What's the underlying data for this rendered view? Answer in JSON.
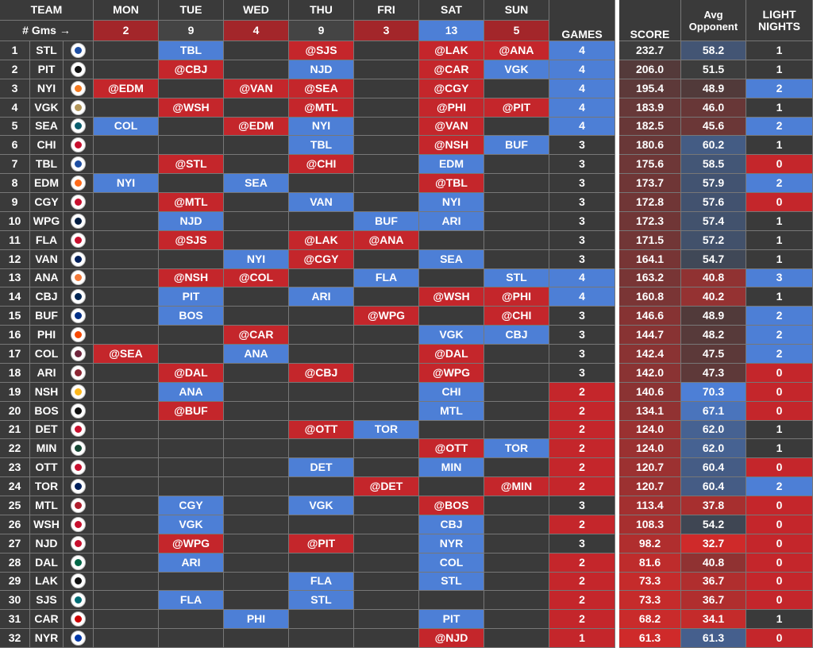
{
  "header": {
    "team": "TEAM",
    "days": [
      "MON",
      "TUE",
      "WED",
      "THU",
      "FRI",
      "SAT",
      "SUN"
    ],
    "gms_label": "# Gms →",
    "day_counts": [
      "2",
      "9",
      "4",
      "9",
      "3",
      "13",
      "5"
    ],
    "games": "GAMES",
    "score": "SCORE",
    "avg_line1": "Avg",
    "avg_line2": "Opponent",
    "light": "LIGHT NIGHTS"
  },
  "table": {
    "rows": [
      {
        "rank": "1",
        "team": "STL",
        "games": [
          null,
          "TBL",
          null,
          "@SJS",
          null,
          "@LAK",
          "@ANA"
        ],
        "count": "4",
        "score": "232.7",
        "avg": "58.2",
        "light": "1"
      },
      {
        "rank": "2",
        "team": "PIT",
        "games": [
          null,
          "@CBJ",
          null,
          "NJD",
          null,
          "@CAR",
          "VGK"
        ],
        "count": "4",
        "score": "206.0",
        "avg": "51.5",
        "light": "1"
      },
      {
        "rank": "3",
        "team": "NYI",
        "games": [
          "@EDM",
          null,
          "@VAN",
          "@SEA",
          null,
          "@CGY",
          null
        ],
        "count": "4",
        "score": "195.4",
        "avg": "48.9",
        "light": "2"
      },
      {
        "rank": "4",
        "team": "VGK",
        "games": [
          null,
          "@WSH",
          null,
          "@MTL",
          null,
          "@PHI",
          "@PIT"
        ],
        "count": "4",
        "score": "183.9",
        "avg": "46.0",
        "light": "1"
      },
      {
        "rank": "5",
        "team": "SEA",
        "games": [
          "COL",
          null,
          "@EDM",
          "NYI",
          null,
          "@VAN",
          null
        ],
        "count": "4",
        "score": "182.5",
        "avg": "45.6",
        "light": "2"
      },
      {
        "rank": "6",
        "team": "CHI",
        "games": [
          null,
          null,
          null,
          "TBL",
          null,
          "@NSH",
          "BUF"
        ],
        "count": "3",
        "score": "180.6",
        "avg": "60.2",
        "light": "1"
      },
      {
        "rank": "7",
        "team": "TBL",
        "games": [
          null,
          "@STL",
          null,
          "@CHI",
          null,
          "EDM",
          null
        ],
        "count": "3",
        "score": "175.6",
        "avg": "58.5",
        "light": "0"
      },
      {
        "rank": "8",
        "team": "EDM",
        "games": [
          "NYI",
          null,
          "SEA",
          null,
          null,
          "@TBL",
          null
        ],
        "count": "3",
        "score": "173.7",
        "avg": "57.9",
        "light": "2"
      },
      {
        "rank": "9",
        "team": "CGY",
        "games": [
          null,
          "@MTL",
          null,
          "VAN",
          null,
          "NYI",
          null
        ],
        "count": "3",
        "score": "172.8",
        "avg": "57.6",
        "light": "0"
      },
      {
        "rank": "10",
        "team": "WPG",
        "games": [
          null,
          "NJD",
          null,
          null,
          "BUF",
          "ARI",
          null
        ],
        "count": "3",
        "score": "172.3",
        "avg": "57.4",
        "light": "1"
      },
      {
        "rank": "11",
        "team": "FLA",
        "games": [
          null,
          "@SJS",
          null,
          "@LAK",
          "@ANA",
          null,
          null
        ],
        "count": "3",
        "score": "171.5",
        "avg": "57.2",
        "light": "1"
      },
      {
        "rank": "12",
        "team": "VAN",
        "games": [
          null,
          null,
          "NYI",
          "@CGY",
          null,
          "SEA",
          null
        ],
        "count": "3",
        "score": "164.1",
        "avg": "54.7",
        "light": "1"
      },
      {
        "rank": "13",
        "team": "ANA",
        "games": [
          null,
          "@NSH",
          "@COL",
          null,
          "FLA",
          null,
          "STL"
        ],
        "count": "4",
        "score": "163.2",
        "avg": "40.8",
        "light": "3"
      },
      {
        "rank": "14",
        "team": "CBJ",
        "games": [
          null,
          "PIT",
          null,
          "ARI",
          null,
          "@WSH",
          "@PHI"
        ],
        "count": "4",
        "score": "160.8",
        "avg": "40.2",
        "light": "1"
      },
      {
        "rank": "15",
        "team": "BUF",
        "games": [
          null,
          "BOS",
          null,
          null,
          "@WPG",
          null,
          "@CHI"
        ],
        "count": "3",
        "score": "146.6",
        "avg": "48.9",
        "light": "2"
      },
      {
        "rank": "16",
        "team": "PHI",
        "games": [
          null,
          null,
          "@CAR",
          null,
          null,
          "VGK",
          "CBJ"
        ],
        "count": "3",
        "score": "144.7",
        "avg": "48.2",
        "light": "2"
      },
      {
        "rank": "17",
        "team": "COL",
        "games": [
          "@SEA",
          null,
          "ANA",
          null,
          null,
          "@DAL",
          null
        ],
        "count": "3",
        "score": "142.4",
        "avg": "47.5",
        "light": "2"
      },
      {
        "rank": "18",
        "team": "ARI",
        "games": [
          null,
          "@DAL",
          null,
          "@CBJ",
          null,
          "@WPG",
          null
        ],
        "count": "3",
        "score": "142.0",
        "avg": "47.3",
        "light": "0"
      },
      {
        "rank": "19",
        "team": "NSH",
        "games": [
          null,
          "ANA",
          null,
          null,
          null,
          "CHI",
          null
        ],
        "count": "2",
        "score": "140.6",
        "avg": "70.3",
        "light": "0"
      },
      {
        "rank": "20",
        "team": "BOS",
        "games": [
          null,
          "@BUF",
          null,
          null,
          null,
          "MTL",
          null
        ],
        "count": "2",
        "score": "134.1",
        "avg": "67.1",
        "light": "0"
      },
      {
        "rank": "21",
        "team": "DET",
        "games": [
          null,
          null,
          null,
          "@OTT",
          "TOR",
          null,
          null
        ],
        "count": "2",
        "score": "124.0",
        "avg": "62.0",
        "light": "1"
      },
      {
        "rank": "22",
        "team": "MIN",
        "games": [
          null,
          null,
          null,
          null,
          null,
          "@OTT",
          "TOR"
        ],
        "count": "2",
        "score": "124.0",
        "avg": "62.0",
        "light": "1"
      },
      {
        "rank": "23",
        "team": "OTT",
        "games": [
          null,
          null,
          null,
          "DET",
          null,
          "MIN",
          null
        ],
        "count": "2",
        "score": "120.7",
        "avg": "60.4",
        "light": "0"
      },
      {
        "rank": "24",
        "team": "TOR",
        "games": [
          null,
          null,
          null,
          null,
          "@DET",
          null,
          "@MIN"
        ],
        "count": "2",
        "score": "120.7",
        "avg": "60.4",
        "light": "2"
      },
      {
        "rank": "25",
        "team": "MTL",
        "games": [
          null,
          "CGY",
          null,
          "VGK",
          null,
          "@BOS",
          null
        ],
        "count": "3",
        "score": "113.4",
        "avg": "37.8",
        "light": "0"
      },
      {
        "rank": "26",
        "team": "WSH",
        "games": [
          null,
          "VGK",
          null,
          null,
          null,
          "CBJ",
          null
        ],
        "count": "2",
        "score": "108.3",
        "avg": "54.2",
        "light": "0"
      },
      {
        "rank": "27",
        "team": "NJD",
        "games": [
          null,
          "@WPG",
          null,
          "@PIT",
          null,
          "NYR",
          null
        ],
        "count": "3",
        "score": "98.2",
        "avg": "32.7",
        "light": "0"
      },
      {
        "rank": "28",
        "team": "DAL",
        "games": [
          null,
          "ARI",
          null,
          null,
          null,
          "COL",
          null
        ],
        "count": "2",
        "score": "81.6",
        "avg": "40.8",
        "light": "0"
      },
      {
        "rank": "29",
        "team": "LAK",
        "games": [
          null,
          null,
          null,
          "FLA",
          null,
          "STL",
          null
        ],
        "count": "2",
        "score": "73.3",
        "avg": "36.7",
        "light": "0"
      },
      {
        "rank": "30",
        "team": "SJS",
        "games": [
          null,
          "FLA",
          null,
          "STL",
          null,
          null,
          null
        ],
        "count": "2",
        "score": "73.3",
        "avg": "36.7",
        "light": "0"
      },
      {
        "rank": "31",
        "team": "CAR",
        "games": [
          null,
          null,
          "PHI",
          null,
          null,
          "PIT",
          null
        ],
        "count": "2",
        "score": "68.2",
        "avg": "34.1",
        "light": "1"
      },
      {
        "rank": "32",
        "team": "NYR",
        "games": [
          null,
          null,
          null,
          null,
          null,
          "@NJD",
          null
        ],
        "count": "1",
        "score": "61.3",
        "avg": "61.3",
        "light": "0"
      }
    ]
  }
}
